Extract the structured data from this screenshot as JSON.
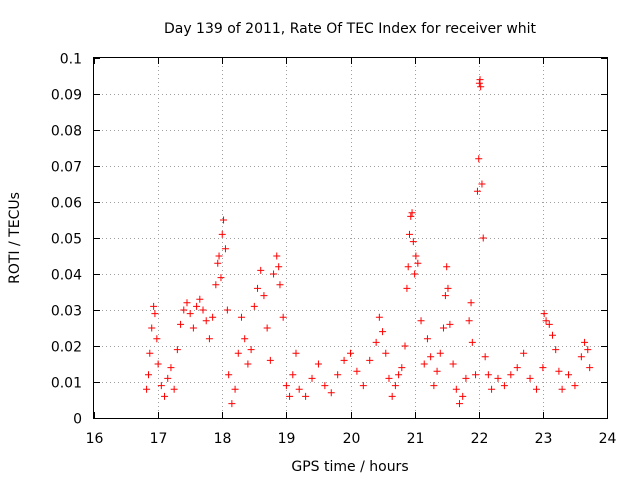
{
  "chart_data": {
    "type": "scatter",
    "title": "Day 139 of 2011, Rate Of TEC Index for receiver whit",
    "xlabel": "GPS time / hours",
    "ylabel": "ROTI / TECUs",
    "xlim": [
      16,
      24
    ],
    "ylim": [
      0,
      0.1
    ],
    "x_ticks": [
      {
        "v": 16,
        "label": "16"
      },
      {
        "v": 17,
        "label": "17"
      },
      {
        "v": 18,
        "label": "18"
      },
      {
        "v": 19,
        "label": "19"
      },
      {
        "v": 20,
        "label": "20"
      },
      {
        "v": 21,
        "label": "21"
      },
      {
        "v": 22,
        "label": "22"
      },
      {
        "v": 23,
        "label": "23"
      },
      {
        "v": 24,
        "label": "24"
      }
    ],
    "y_ticks": [
      {
        "v": 0,
        "label": "0"
      },
      {
        "v": 0.01,
        "label": "0.01"
      },
      {
        "v": 0.02,
        "label": "0.02"
      },
      {
        "v": 0.03,
        "label": "0.03"
      },
      {
        "v": 0.04,
        "label": "0.04"
      },
      {
        "v": 0.05,
        "label": "0.05"
      },
      {
        "v": 0.06,
        "label": "0.06"
      },
      {
        "v": 0.07,
        "label": "0.07"
      },
      {
        "v": 0.08,
        "label": "0.08"
      },
      {
        "v": 0.09,
        "label": "0.09"
      },
      {
        "v": 0.1,
        "label": "0.1"
      }
    ],
    "grid": true,
    "marker": "+",
    "color": "#ff0000",
    "series": [
      {
        "name": "ROTI",
        "points": [
          [
            16.82,
            0.008
          ],
          [
            16.85,
            0.012
          ],
          [
            16.87,
            0.018
          ],
          [
            16.9,
            0.025
          ],
          [
            16.93,
            0.031
          ],
          [
            16.95,
            0.029
          ],
          [
            16.98,
            0.022
          ],
          [
            17.0,
            0.015
          ],
          [
            17.05,
            0.009
          ],
          [
            17.1,
            0.006
          ],
          [
            17.15,
            0.011
          ],
          [
            17.2,
            0.014
          ],
          [
            17.25,
            0.008
          ],
          [
            17.3,
            0.019
          ],
          [
            17.35,
            0.026
          ],
          [
            17.4,
            0.03
          ],
          [
            17.45,
            0.032
          ],
          [
            17.5,
            0.029
          ],
          [
            17.55,
            0.025
          ],
          [
            17.6,
            0.031
          ],
          [
            17.65,
            0.033
          ],
          [
            17.7,
            0.03
          ],
          [
            17.75,
            0.027
          ],
          [
            17.8,
            0.022
          ],
          [
            17.85,
            0.028
          ],
          [
            17.9,
            0.037
          ],
          [
            17.93,
            0.043
          ],
          [
            17.95,
            0.045
          ],
          [
            17.98,
            0.039
          ],
          [
            18.0,
            0.051
          ],
          [
            18.02,
            0.055
          ],
          [
            18.05,
            0.047
          ],
          [
            18.08,
            0.03
          ],
          [
            18.1,
            0.012
          ],
          [
            18.15,
            0.004
          ],
          [
            18.2,
            0.008
          ],
          [
            18.25,
            0.018
          ],
          [
            18.3,
            0.028
          ],
          [
            18.35,
            0.022
          ],
          [
            18.4,
            0.015
          ],
          [
            18.45,
            0.019
          ],
          [
            18.5,
            0.031
          ],
          [
            18.55,
            0.036
          ],
          [
            18.6,
            0.041
          ],
          [
            18.65,
            0.034
          ],
          [
            18.7,
            0.025
          ],
          [
            18.75,
            0.016
          ],
          [
            18.8,
            0.04
          ],
          [
            18.85,
            0.045
          ],
          [
            18.88,
            0.042
          ],
          [
            18.9,
            0.037
          ],
          [
            18.95,
            0.028
          ],
          [
            19.0,
            0.009
          ],
          [
            19.05,
            0.006
          ],
          [
            19.1,
            0.012
          ],
          [
            19.15,
            0.018
          ],
          [
            19.2,
            0.008
          ],
          [
            19.3,
            0.006
          ],
          [
            19.4,
            0.011
          ],
          [
            19.5,
            0.015
          ],
          [
            19.6,
            0.009
          ],
          [
            19.7,
            0.007
          ],
          [
            19.8,
            0.012
          ],
          [
            19.9,
            0.016
          ],
          [
            20.0,
            0.018
          ],
          [
            20.1,
            0.013
          ],
          [
            20.2,
            0.009
          ],
          [
            20.3,
            0.016
          ],
          [
            20.4,
            0.021
          ],
          [
            20.45,
            0.028
          ],
          [
            20.5,
            0.024
          ],
          [
            20.55,
            0.018
          ],
          [
            20.6,
            0.011
          ],
          [
            20.65,
            0.006
          ],
          [
            20.7,
            0.009
          ],
          [
            20.75,
            0.012
          ],
          [
            20.8,
            0.014
          ],
          [
            20.85,
            0.02
          ],
          [
            20.88,
            0.036
          ],
          [
            20.9,
            0.042
          ],
          [
            20.92,
            0.051
          ],
          [
            20.94,
            0.056
          ],
          [
            20.96,
            0.057
          ],
          [
            20.98,
            0.049
          ],
          [
            21.0,
            0.04
          ],
          [
            21.02,
            0.045
          ],
          [
            21.05,
            0.043
          ],
          [
            21.1,
            0.027
          ],
          [
            21.15,
            0.015
          ],
          [
            21.2,
            0.022
          ],
          [
            21.25,
            0.017
          ],
          [
            21.3,
            0.009
          ],
          [
            21.35,
            0.013
          ],
          [
            21.4,
            0.018
          ],
          [
            21.45,
            0.025
          ],
          [
            21.48,
            0.034
          ],
          [
            21.5,
            0.042
          ],
          [
            21.52,
            0.036
          ],
          [
            21.55,
            0.026
          ],
          [
            21.6,
            0.015
          ],
          [
            21.65,
            0.008
          ],
          [
            21.7,
            0.004
          ],
          [
            21.75,
            0.006
          ],
          [
            21.8,
            0.011
          ],
          [
            21.85,
            0.027
          ],
          [
            21.88,
            0.032
          ],
          [
            21.9,
            0.021
          ],
          [
            21.95,
            0.012
          ],
          [
            21.98,
            0.063
          ],
          [
            22.0,
            0.072
          ],
          [
            22.01,
            0.093
          ],
          [
            22.02,
            0.094
          ],
          [
            22.03,
            0.092
          ],
          [
            22.05,
            0.065
          ],
          [
            22.07,
            0.05
          ],
          [
            22.1,
            0.017
          ],
          [
            22.15,
            0.012
          ],
          [
            22.2,
            0.008
          ],
          [
            22.3,
            0.011
          ],
          [
            22.4,
            0.009
          ],
          [
            22.5,
            0.012
          ],
          [
            22.6,
            0.014
          ],
          [
            22.7,
            0.018
          ],
          [
            22.8,
            0.011
          ],
          [
            22.9,
            0.008
          ],
          [
            23.0,
            0.014
          ],
          [
            23.02,
            0.029
          ],
          [
            23.05,
            0.027
          ],
          [
            23.1,
            0.026
          ],
          [
            23.15,
            0.023
          ],
          [
            23.2,
            0.019
          ],
          [
            23.25,
            0.013
          ],
          [
            23.3,
            0.008
          ],
          [
            23.4,
            0.012
          ],
          [
            23.5,
            0.009
          ],
          [
            23.6,
            0.017
          ],
          [
            23.65,
            0.021
          ],
          [
            23.7,
            0.019
          ],
          [
            23.73,
            0.014
          ]
        ]
      }
    ]
  }
}
